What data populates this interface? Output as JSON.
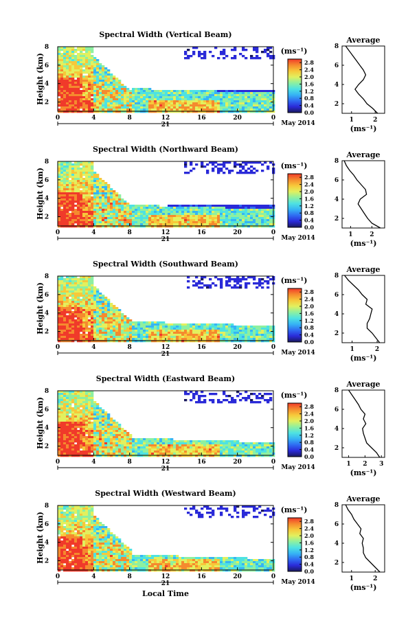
{
  "figure": {
    "x_axis_label": "Local Time",
    "date_label": "May 2014",
    "day_label": "21",
    "y_axis_label": "Height (km)",
    "colorbar_unit": "(ms⁻¹)",
    "avg_title": "Average",
    "avg_xlabel": "(ms⁻¹)"
  },
  "colorbar": {
    "ticks": [
      "0.0",
      "0.4",
      "0.8",
      "1.2",
      "1.6",
      "2.0",
      "2.4",
      "2.8"
    ],
    "range": [
      0.0,
      3.0
    ],
    "colors": [
      "#1a1a5e",
      "#2a2ad8",
      "#2f6cf2",
      "#36b4f4",
      "#4ee2e2",
      "#8ef0a0",
      "#e2f05e",
      "#f7c83a",
      "#f58a2e",
      "#f03a2a"
    ]
  },
  "chart_data": [
    {
      "type": "heatmap",
      "title": "Spectral Width (Vertical Beam)",
      "xlabel": "",
      "ylabel": "Height (km)",
      "x_ticks": [
        "0",
        "4",
        "8",
        "12",
        "16",
        "20",
        "0"
      ],
      "y_ticks": [
        "2",
        "4",
        "6",
        "8"
      ],
      "xlim": [
        0,
        24
      ],
      "ylim": [
        1,
        8
      ],
      "profile": {
        "title": "Average",
        "xlabel": "(ms⁻¹)",
        "x_ticks": [
          "1",
          "2"
        ],
        "xlim": [
          0.6,
          2.4
        ],
        "heights": [
          1.0,
          1.5,
          2.0,
          2.5,
          3.0,
          3.5,
          4.0,
          4.5,
          5.0,
          5.5,
          6.0,
          6.5,
          7.0,
          7.5,
          8.0
        ],
        "values": [
          2.1,
          1.9,
          1.65,
          1.5,
          1.3,
          1.15,
          1.3,
          1.5,
          1.6,
          1.5,
          1.35,
          1.2,
          1.05,
          0.9,
          0.75
        ]
      }
    },
    {
      "type": "heatmap",
      "title": "Spectral Width (Northward Beam)",
      "xlabel": "",
      "ylabel": "Height (km)",
      "x_ticks": [
        "0",
        "4",
        "8",
        "12",
        "16",
        "20",
        "0"
      ],
      "y_ticks": [
        "2",
        "4",
        "6",
        "8"
      ],
      "xlim": [
        0,
        24
      ],
      "ylim": [
        1,
        8
      ],
      "profile": {
        "title": "Average",
        "xlabel": "(ms⁻¹)",
        "x_ticks": [
          "1",
          "2"
        ],
        "xlim": [
          0.6,
          2.6
        ],
        "heights": [
          1.0,
          1.5,
          2.0,
          2.5,
          3.0,
          3.5,
          4.0,
          4.5,
          5.0,
          5.5,
          6.0,
          6.5,
          7.0,
          7.5,
          8.0
        ],
        "values": [
          2.4,
          2.0,
          1.8,
          1.65,
          1.5,
          1.35,
          1.45,
          1.75,
          1.7,
          1.5,
          1.3,
          1.15,
          0.95,
          0.8,
          0.7
        ]
      }
    },
    {
      "type": "heatmap",
      "title": "Spectral Width (Southward Beam)",
      "xlabel": "",
      "ylabel": "Height (km)",
      "x_ticks": [
        "0",
        "4",
        "8",
        "12",
        "16",
        "20",
        "0"
      ],
      "y_ticks": [
        "2",
        "4",
        "6",
        "8"
      ],
      "xlim": [
        0,
        24
      ],
      "ylim": [
        1,
        8
      ],
      "profile": {
        "title": "Average",
        "xlabel": "(ms⁻¹)",
        "x_ticks": [
          "1",
          "2"
        ],
        "xlim": [
          0.6,
          2.3
        ],
        "heights": [
          1.0,
          1.5,
          2.0,
          2.5,
          3.0,
          3.5,
          4.0,
          4.5,
          5.0,
          5.5,
          6.0,
          6.5,
          7.0,
          7.5,
          8.0
        ],
        "values": [
          2.1,
          1.95,
          1.8,
          1.6,
          1.6,
          1.7,
          1.75,
          1.8,
          1.55,
          1.6,
          1.4,
          1.25,
          1.05,
          0.85,
          0.7
        ]
      }
    },
    {
      "type": "heatmap",
      "title": "Spectral Width (Eastward Beam)",
      "xlabel": "",
      "ylabel": "Height (km)",
      "x_ticks": [
        "0",
        "4",
        "8",
        "12",
        "16",
        "20",
        "0"
      ],
      "y_ticks": [
        "2",
        "4",
        "6",
        "8"
      ],
      "xlim": [
        0,
        24
      ],
      "ylim": [
        1,
        8
      ],
      "profile": {
        "title": "Average",
        "xlabel": "(ms⁻¹)",
        "x_ticks": [
          "1",
          "2",
          "3"
        ],
        "xlim": [
          0.6,
          3.2
        ],
        "heights": [
          1.0,
          1.5,
          2.0,
          2.5,
          3.0,
          3.5,
          4.0,
          4.5,
          5.0,
          5.5,
          6.0,
          6.5,
          7.0,
          7.5,
          8.0
        ],
        "values": [
          2.9,
          2.7,
          2.4,
          2.1,
          2.0,
          1.9,
          1.85,
          2.05,
          1.9,
          2.0,
          1.75,
          1.6,
          1.4,
          1.2,
          1.0
        ]
      }
    },
    {
      "type": "heatmap",
      "title": "Spectral Width (Westward Beam)",
      "xlabel": "Local Time",
      "ylabel": "Height (km)",
      "x_ticks": [
        "0",
        "4",
        "8",
        "12",
        "16",
        "20",
        "0"
      ],
      "y_ticks": [
        "2",
        "4",
        "6",
        "8"
      ],
      "xlim": [
        0,
        24
      ],
      "ylim": [
        1,
        8
      ],
      "profile": {
        "title": "Average",
        "xlabel": "(ms⁻¹)",
        "x_ticks": [
          "1",
          "2"
        ],
        "xlim": [
          0.6,
          2.4
        ],
        "heights": [
          1.0,
          1.5,
          2.0,
          2.5,
          3.0,
          3.5,
          4.0,
          4.5,
          5.0,
          5.5,
          6.0,
          6.5,
          7.0,
          7.5,
          8.0
        ],
        "values": [
          2.2,
          2.0,
          1.8,
          1.6,
          1.5,
          1.5,
          1.45,
          1.5,
          1.35,
          1.4,
          1.25,
          1.1,
          1.0,
          0.85,
          0.75
        ]
      }
    }
  ]
}
